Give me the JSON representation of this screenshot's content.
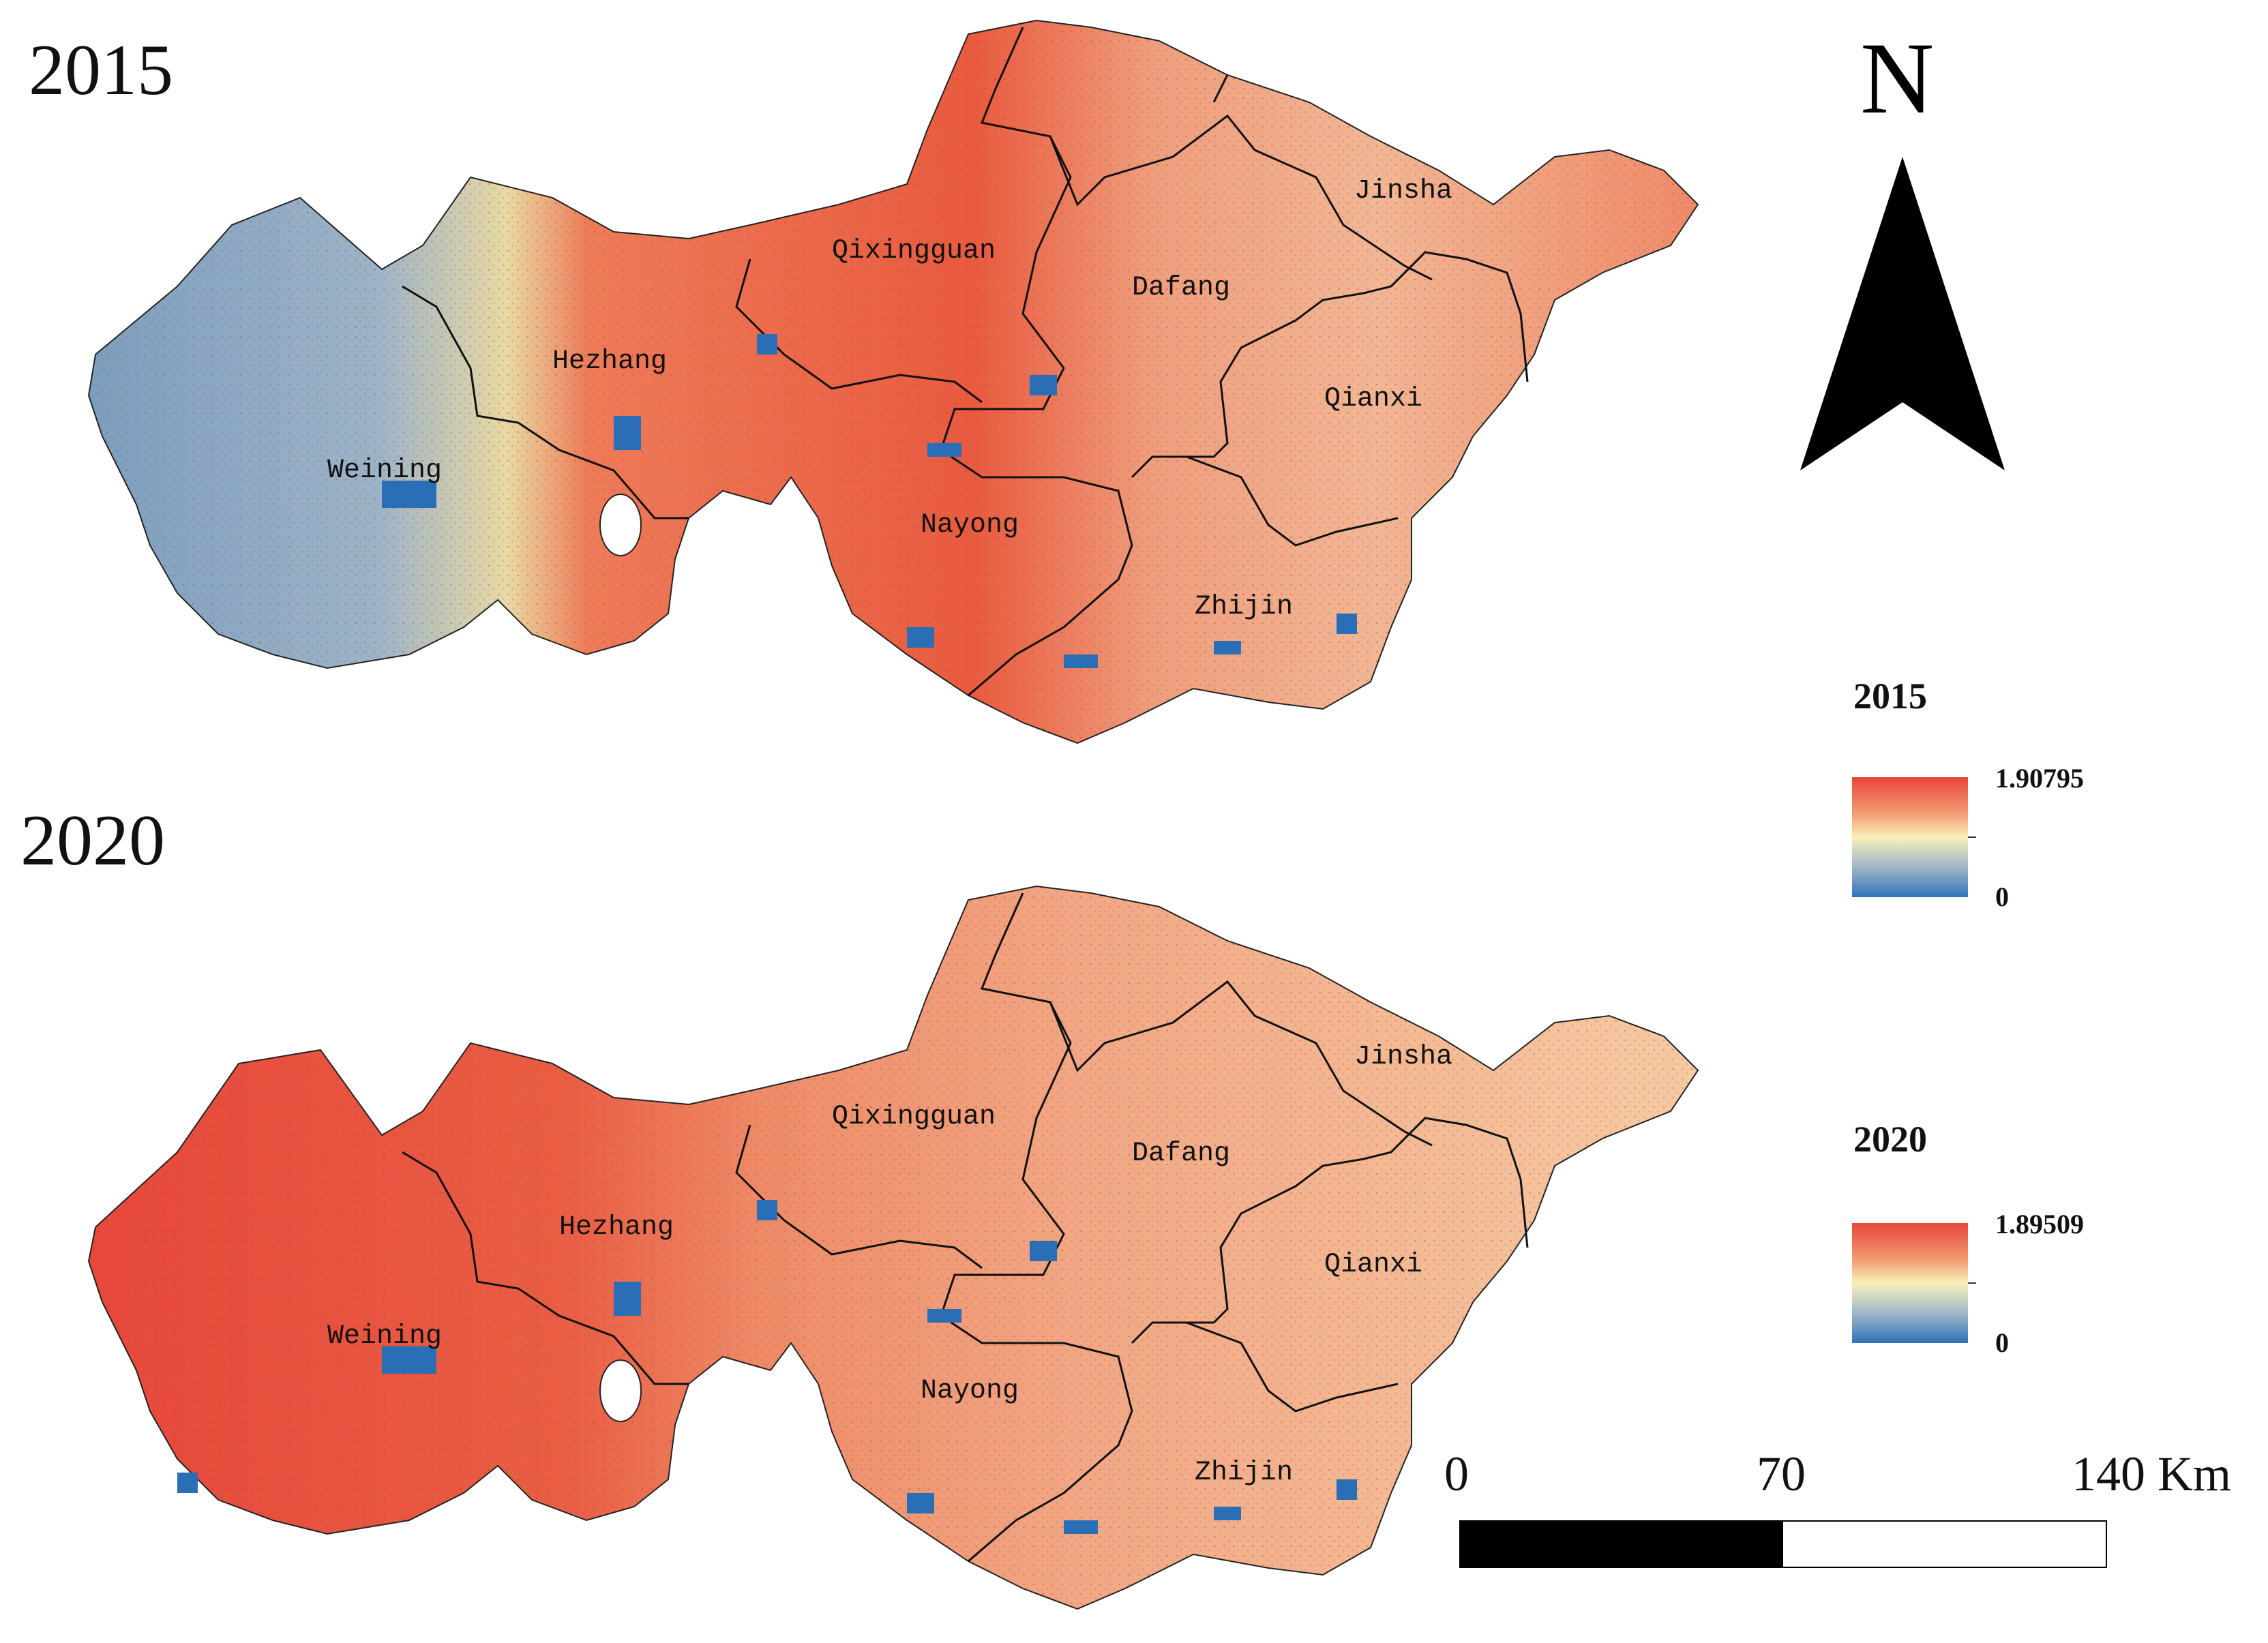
{
  "maps": [
    {
      "year": "2015",
      "districts": [
        "Weining",
        "Hezhang",
        "Qixingguan",
        "Dafang",
        "Jinsha",
        "Qianxi",
        "Nayong",
        "Zhijin"
      ]
    },
    {
      "year": "2020",
      "districts": [
        "Weining",
        "Hezhang",
        "Qixingguan",
        "Dafang",
        "Jinsha",
        "Qianxi",
        "Nayong",
        "Zhijin"
      ]
    }
  ],
  "north_arrow": {
    "label": "N"
  },
  "legends": [
    {
      "title": "2015",
      "max": "1.90795",
      "min": "0"
    },
    {
      "title": "2020",
      "max": "1.89509",
      "min": "0"
    }
  ],
  "scale_bar": {
    "ticks": [
      "0",
      "70",
      "140 Km"
    ]
  },
  "colors": {
    "high": "#e8453a",
    "mid": "#f9f0b8",
    "low": "#2f73b8",
    "water": "#2a6fb5",
    "boundary": "#111111"
  }
}
